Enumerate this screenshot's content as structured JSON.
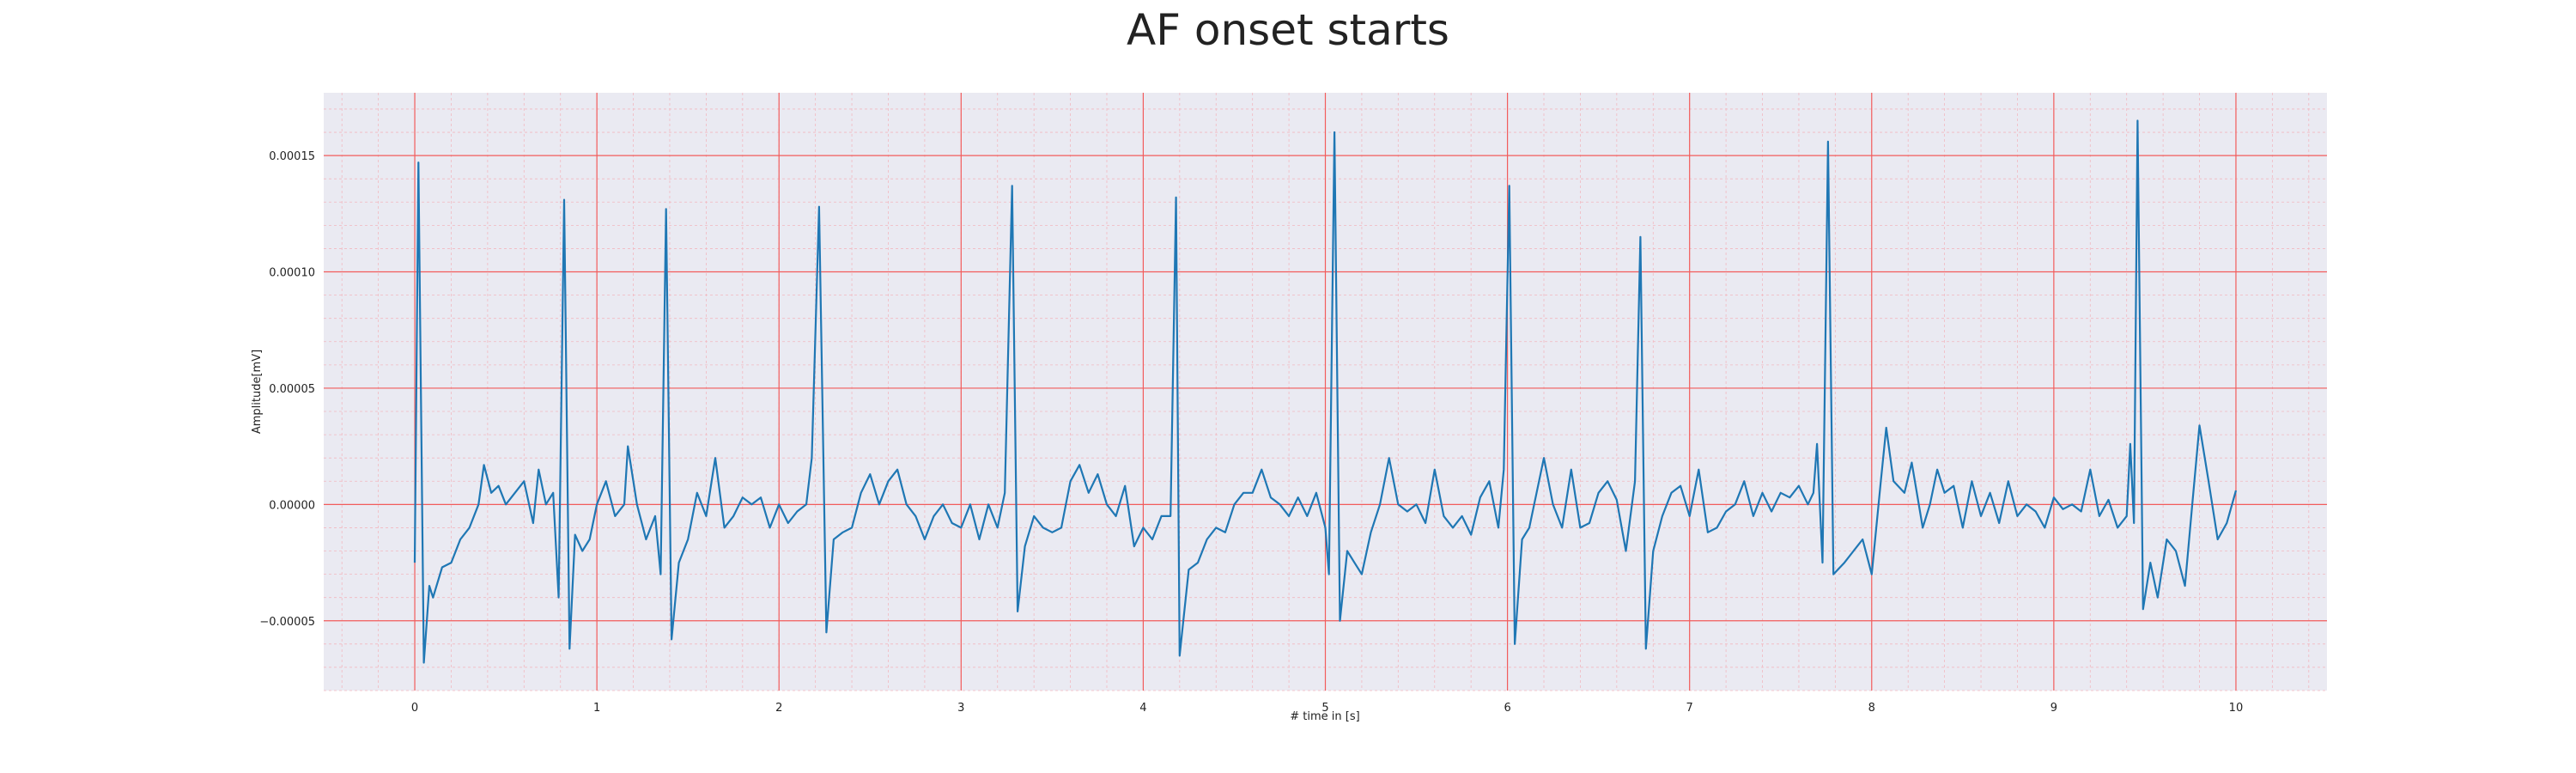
{
  "chart_data": {
    "type": "line",
    "title": "AF onset starts",
    "xlabel": "# time in [s]",
    "ylabel": "Amplitude[mV]",
    "xlim": [
      -0.5,
      10.5
    ],
    "ylim": [
      -8e-05,
      0.000177
    ],
    "x_ticks": [
      0,
      1,
      2,
      3,
      4,
      5,
      6,
      7,
      8,
      9,
      10
    ],
    "x_tick_labels": [
      "0",
      "1",
      "2",
      "3",
      "4",
      "5",
      "6",
      "7",
      "8",
      "9",
      "10"
    ],
    "y_ticks": [
      -5e-05,
      0,
      5e-05,
      0.0001,
      0.00015
    ],
    "y_tick_labels": [
      "−0.00005",
      "0.00000",
      "0.00005",
      "0.00010",
      "0.00015"
    ],
    "grid": true,
    "minor_grid": true,
    "colors": {
      "line": "#1f77b4",
      "plot_background": "#eaeaf2",
      "major_grid": "#f25c5c",
      "minor_grid": "#f2b8c0"
    },
    "series": [
      {
        "color": "#1f77b4",
        "points": [
          [
            0.0,
            -2.5e-05
          ],
          [
            0.02,
            0.000147
          ],
          [
            0.05,
            -6.8e-05
          ],
          [
            0.08,
            -3.5e-05
          ],
          [
            0.1,
            -4e-05
          ],
          [
            0.15,
            -2.7e-05
          ],
          [
            0.2,
            -2.5e-05
          ],
          [
            0.25,
            -1.5e-05
          ],
          [
            0.3,
            -1e-05
          ],
          [
            0.35,
            0.0
          ],
          [
            0.38,
            1.7e-05
          ],
          [
            0.42,
            5e-06
          ],
          [
            0.46,
            8e-06
          ],
          [
            0.5,
            0.0
          ],
          [
            0.55,
            5e-06
          ],
          [
            0.6,
            1e-05
          ],
          [
            0.65,
            -8e-06
          ],
          [
            0.68,
            1.5e-05
          ],
          [
            0.72,
            0.0
          ],
          [
            0.76,
            5e-06
          ],
          [
            0.79,
            -4e-05
          ],
          [
            0.82,
            0.000131
          ],
          [
            0.85,
            -6.2e-05
          ],
          [
            0.88,
            -1.3e-05
          ],
          [
            0.92,
            -2e-05
          ],
          [
            0.96,
            -1.5e-05
          ],
          [
            1.0,
            0.0
          ],
          [
            1.05,
            1e-05
          ],
          [
            1.1,
            -5e-06
          ],
          [
            1.15,
            0.0
          ],
          [
            1.17,
            2.5e-05
          ],
          [
            1.22,
            0.0
          ],
          [
            1.27,
            -1.5e-05
          ],
          [
            1.32,
            -5e-06
          ],
          [
            1.35,
            -3e-05
          ],
          [
            1.38,
            0.000127
          ],
          [
            1.41,
            -5.8e-05
          ],
          [
            1.45,
            -2.5e-05
          ],
          [
            1.5,
            -1.5e-05
          ],
          [
            1.55,
            5e-06
          ],
          [
            1.6,
            -5e-06
          ],
          [
            1.65,
            2e-05
          ],
          [
            1.7,
            -1e-05
          ],
          [
            1.75,
            -5e-06
          ],
          [
            1.8,
            3e-06
          ],
          [
            1.85,
            0.0
          ],
          [
            1.9,
            3e-06
          ],
          [
            1.95,
            -1e-05
          ],
          [
            2.0,
            0.0
          ],
          [
            2.05,
            -8e-06
          ],
          [
            2.1,
            -3e-06
          ],
          [
            2.15,
            0.0
          ],
          [
            2.18,
            2e-05
          ],
          [
            2.22,
            0.000128
          ],
          [
            2.26,
            -5.5e-05
          ],
          [
            2.3,
            -1.5e-05
          ],
          [
            2.35,
            -1.2e-05
          ],
          [
            2.4,
            -1e-05
          ],
          [
            2.45,
            5e-06
          ],
          [
            2.5,
            1.3e-05
          ],
          [
            2.55,
            0.0
          ],
          [
            2.6,
            1e-05
          ],
          [
            2.65,
            1.5e-05
          ],
          [
            2.7,
            0.0
          ],
          [
            2.75,
            -5e-06
          ],
          [
            2.8,
            -1.5e-05
          ],
          [
            2.85,
            -5e-06
          ],
          [
            2.9,
            0.0
          ],
          [
            2.95,
            -8e-06
          ],
          [
            3.0,
            -1e-05
          ],
          [
            3.05,
            0.0
          ],
          [
            3.1,
            -1.5e-05
          ],
          [
            3.15,
            0.0
          ],
          [
            3.2,
            -1e-05
          ],
          [
            3.24,
            5e-06
          ],
          [
            3.28,
            0.000137
          ],
          [
            3.31,
            -4.6e-05
          ],
          [
            3.35,
            -1.8e-05
          ],
          [
            3.4,
            -5e-06
          ],
          [
            3.45,
            -1e-05
          ],
          [
            3.5,
            -1.2e-05
          ],
          [
            3.55,
            -1e-05
          ],
          [
            3.6,
            1e-05
          ],
          [
            3.65,
            1.7e-05
          ],
          [
            3.7,
            5e-06
          ],
          [
            3.75,
            1.3e-05
          ],
          [
            3.8,
            0.0
          ],
          [
            3.85,
            -5e-06
          ],
          [
            3.9,
            8e-06
          ],
          [
            3.95,
            -1.8e-05
          ],
          [
            4.0,
            -1e-05
          ],
          [
            4.05,
            -1.5e-05
          ],
          [
            4.1,
            -5e-06
          ],
          [
            4.15,
            -5e-06
          ],
          [
            4.18,
            0.000132
          ],
          [
            4.2,
            -6.5e-05
          ],
          [
            4.25,
            -2.8e-05
          ],
          [
            4.3,
            -2.5e-05
          ],
          [
            4.35,
            -1.5e-05
          ],
          [
            4.4,
            -1e-05
          ],
          [
            4.45,
            -1.2e-05
          ],
          [
            4.5,
            0.0
          ],
          [
            4.55,
            5e-06
          ],
          [
            4.6,
            5e-06
          ],
          [
            4.65,
            1.5e-05
          ],
          [
            4.7,
            3e-06
          ],
          [
            4.75,
            0.0
          ],
          [
            4.8,
            -5e-06
          ],
          [
            4.85,
            3e-06
          ],
          [
            4.9,
            -5e-06
          ],
          [
            4.95,
            5e-06
          ],
          [
            5.0,
            -1e-05
          ],
          [
            5.02,
            -3e-05
          ],
          [
            5.05,
            0.00016
          ],
          [
            5.08,
            -5e-05
          ],
          [
            5.12,
            -2e-05
          ],
          [
            5.16,
            -2.5e-05
          ],
          [
            5.2,
            -3e-05
          ],
          [
            5.25,
            -1.2e-05
          ],
          [
            5.3,
            0.0
          ],
          [
            5.35,
            2e-05
          ],
          [
            5.4,
            0.0
          ],
          [
            5.45,
            -3e-06
          ],
          [
            5.5,
            0.0
          ],
          [
            5.55,
            -8e-06
          ],
          [
            5.6,
            1.5e-05
          ],
          [
            5.65,
            -5e-06
          ],
          [
            5.7,
            -1e-05
          ],
          [
            5.75,
            -5e-06
          ],
          [
            5.8,
            -1.3e-05
          ],
          [
            5.85,
            3e-06
          ],
          [
            5.9,
            1e-05
          ],
          [
            5.95,
            -1e-05
          ],
          [
            5.98,
            1.5e-05
          ],
          [
            6.01,
            0.000137
          ],
          [
            6.04,
            -6e-05
          ],
          [
            6.08,
            -1.5e-05
          ],
          [
            6.12,
            -1e-05
          ],
          [
            6.16,
            5e-06
          ],
          [
            6.2,
            2e-05
          ],
          [
            6.25,
            0.0
          ],
          [
            6.3,
            -1e-05
          ],
          [
            6.35,
            1.5e-05
          ],
          [
            6.4,
            -1e-05
          ],
          [
            6.45,
            -8e-06
          ],
          [
            6.5,
            5e-06
          ],
          [
            6.55,
            1e-05
          ],
          [
            6.6,
            2e-06
          ],
          [
            6.65,
            -2e-05
          ],
          [
            6.7,
            1e-05
          ],
          [
            6.73,
            0.000115
          ],
          [
            6.76,
            -6.2e-05
          ],
          [
            6.8,
            -2e-05
          ],
          [
            6.85,
            -5e-06
          ],
          [
            6.9,
            5e-06
          ],
          [
            6.95,
            8e-06
          ],
          [
            7.0,
            -5e-06
          ],
          [
            7.05,
            1.5e-05
          ],
          [
            7.1,
            -1.2e-05
          ],
          [
            7.15,
            -1e-05
          ],
          [
            7.2,
            -3e-06
          ],
          [
            7.25,
            0.0
          ],
          [
            7.3,
            1e-05
          ],
          [
            7.35,
            -5e-06
          ],
          [
            7.4,
            5e-06
          ],
          [
            7.45,
            -3e-06
          ],
          [
            7.5,
            5e-06
          ],
          [
            7.55,
            3e-06
          ],
          [
            7.6,
            8e-06
          ],
          [
            7.65,
            0.0
          ],
          [
            7.68,
            5e-06
          ],
          [
            7.7,
            2.6e-05
          ],
          [
            7.73,
            -2.5e-05
          ],
          [
            7.76,
            0.000156
          ],
          [
            7.79,
            -3e-05
          ],
          [
            7.85,
            -2.5e-05
          ],
          [
            7.9,
            -2e-05
          ],
          [
            7.95,
            -1.5e-05
          ],
          [
            8.0,
            -3e-05
          ],
          [
            8.05,
            1e-05
          ],
          [
            8.08,
            3.3e-05
          ],
          [
            8.12,
            1e-05
          ],
          [
            8.18,
            5e-06
          ],
          [
            8.22,
            1.8e-05
          ],
          [
            8.28,
            -1e-05
          ],
          [
            8.32,
            0.0
          ],
          [
            8.36,
            1.5e-05
          ],
          [
            8.4,
            5e-06
          ],
          [
            8.45,
            8e-06
          ],
          [
            8.5,
            -1e-05
          ],
          [
            8.55,
            1e-05
          ],
          [
            8.6,
            -5e-06
          ],
          [
            8.65,
            5e-06
          ],
          [
            8.7,
            -8e-06
          ],
          [
            8.75,
            1e-05
          ],
          [
            8.8,
            -5e-06
          ],
          [
            8.85,
            0.0
          ],
          [
            8.9,
            -3e-06
          ],
          [
            8.95,
            -1e-05
          ],
          [
            9.0,
            3e-06
          ],
          [
            9.05,
            -2e-06
          ],
          [
            9.1,
            0.0
          ],
          [
            9.15,
            -3e-06
          ],
          [
            9.2,
            1.5e-05
          ],
          [
            9.25,
            -5e-06
          ],
          [
            9.3,
            2e-06
          ],
          [
            9.35,
            -1e-05
          ],
          [
            9.4,
            -5e-06
          ],
          [
            9.42,
            2.6e-05
          ],
          [
            9.44,
            -8e-06
          ],
          [
            9.46,
            0.000165
          ],
          [
            9.49,
            -4.5e-05
          ],
          [
            9.53,
            -2.5e-05
          ],
          [
            9.57,
            -4e-05
          ],
          [
            9.62,
            -1.5e-05
          ],
          [
            9.67,
            -2e-05
          ],
          [
            9.72,
            -3.5e-05
          ],
          [
            9.76,
            0.0
          ],
          [
            9.8,
            3.4e-05
          ],
          [
            9.85,
            1e-05
          ],
          [
            9.9,
            -1.5e-05
          ],
          [
            9.95,
            -8e-06
          ],
          [
            10.0,
            6e-06
          ]
        ]
      }
    ]
  }
}
